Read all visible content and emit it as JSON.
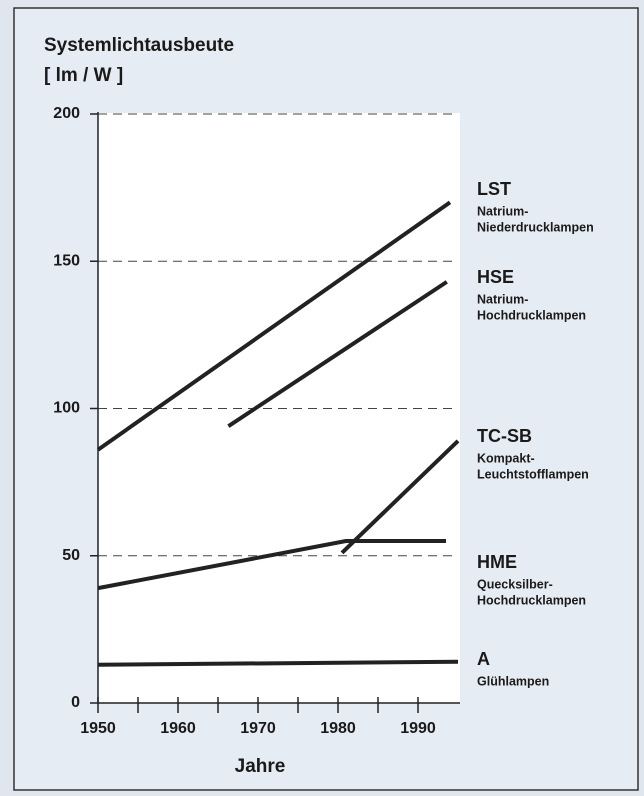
{
  "chart_data": {
    "type": "line",
    "title": "Systemlichtausbeute",
    "y_label": "[ lm / W ]",
    "x_label": "Jahre",
    "xlim": [
      1950,
      1995
    ],
    "xticks": [
      1950,
      1960,
      1970,
      1980,
      1990
    ],
    "xminorticks": [
      1955,
      1965,
      1975,
      1985
    ],
    "ylim": [
      0,
      200
    ],
    "yticks": [
      0,
      50,
      100,
      150,
      200
    ],
    "grid": true,
    "grid_style": "dashed",
    "series": [
      {
        "name": "LST",
        "description": [
          "Natrium-",
          "Niederdrucklampen"
        ],
        "color": "#222222",
        "x": [
          1950,
          1994
        ],
        "values": [
          86,
          170
        ]
      },
      {
        "name": "HSE",
        "description": [
          "Natrium-",
          "Hochdrucklampen"
        ],
        "color": "#222222",
        "x": [
          1966.3,
          1993.6
        ],
        "values": [
          94,
          143
        ]
      },
      {
        "name": "TC-SB",
        "description": [
          "Kompakt-",
          "Leuchtstofflampen"
        ],
        "color": "#222222",
        "x": [
          1980.5,
          1995
        ],
        "values": [
          51,
          89
        ]
      },
      {
        "name": "HME",
        "description": [
          "Quecksilber-",
          "Hochdrucklampen"
        ],
        "color": "#222222",
        "x": [
          1950,
          1981,
          1993.5
        ],
        "values": [
          39,
          55,
          55
        ]
      },
      {
        "name": "A",
        "description": [
          "Glühlampen"
        ],
        "color": "#222222",
        "x": [
          1950,
          1995
        ],
        "values": [
          13,
          14
        ]
      }
    ]
  }
}
